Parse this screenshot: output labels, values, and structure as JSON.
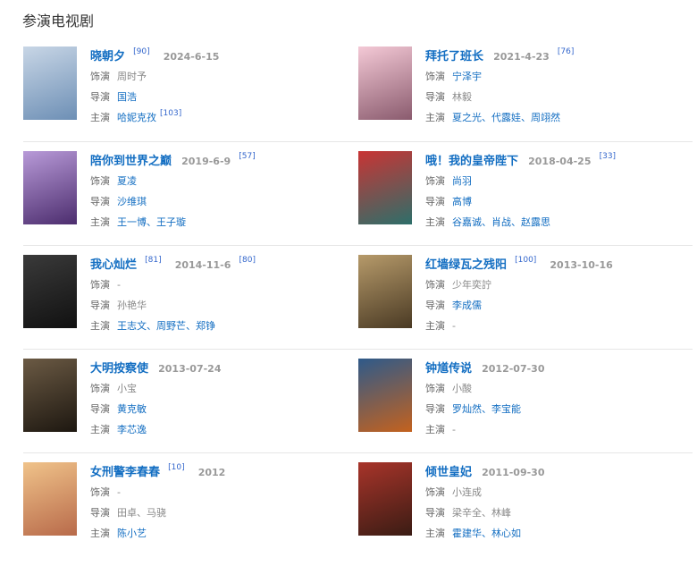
{
  "section_title": "参演电视剧",
  "labels": {
    "role": "饰演",
    "director": "导演",
    "cast": "主演"
  },
  "items": [
    {
      "title": "晓朝夕",
      "ref1": "[90]",
      "date": "2024-6-15",
      "ref2": "",
      "role": "周时予",
      "role_link": false,
      "director": "国浩",
      "director_link": true,
      "cast": "哈妮克孜",
      "cast_link": true,
      "cast_ref": "[103]",
      "poster": [
        "#c8d6e6",
        "#6d8fb5"
      ]
    },
    {
      "title": "拜托了班长",
      "ref1": "",
      "date": "2021-4-23",
      "ref2": "[76]",
      "role": "宁泽宇",
      "role_link": true,
      "director": "林毅",
      "director_link": false,
      "cast": "夏之光、代露娃、周翊然",
      "cast_link": true,
      "cast_ref": "",
      "poster": [
        "#f4c9d6",
        "#8a5b6e"
      ]
    },
    {
      "title": "陪你到世界之巅",
      "ref1": "",
      "date": "2019-6-9",
      "ref2": "[57]",
      "role": "夏凌",
      "role_link": true,
      "director": "沙维琪",
      "director_link": true,
      "cast": "王一博、王子璇",
      "cast_link": true,
      "cast_ref": "",
      "poster": [
        "#b89ad8",
        "#4c2d6e"
      ]
    },
    {
      "title": "哦！我的皇帝陛下",
      "ref1": "",
      "date": "2018-04-25",
      "ref2": "[33]",
      "role": "尚羽",
      "role_link": true,
      "director": "高博",
      "director_link": true,
      "cast": "谷嘉诚、肖战、赵露思",
      "cast_link": true,
      "cast_ref": "",
      "poster": [
        "#c93434",
        "#2d6f6a"
      ]
    },
    {
      "title": "我心灿烂",
      "ref1": "[81]",
      "date": "2014-11-6",
      "ref2": "[80]",
      "role": "-",
      "role_link": false,
      "director": "孙艳华",
      "director_link": false,
      "cast": "王志文、周野芒、郑铮",
      "cast_link": true,
      "cast_ref": "",
      "poster": [
        "#3a3a3a",
        "#111111"
      ]
    },
    {
      "title": "红墙绿瓦之残阳",
      "ref1": "[100]",
      "date": "2013-10-16",
      "ref2": "",
      "role": "少年奕詝",
      "role_link": false,
      "director": "李成儒",
      "director_link": true,
      "cast": "-",
      "cast_link": false,
      "cast_ref": "",
      "poster": [
        "#b69a6a",
        "#4a3a24"
      ]
    },
    {
      "title": "大明按察使",
      "ref1": "",
      "date": "2013-07-24",
      "ref2": "",
      "role": "小宝",
      "role_link": false,
      "director": "黄克敏",
      "director_link": true,
      "cast": "李芯逸",
      "cast_link": true,
      "cast_ref": "",
      "poster": [
        "#6b5a44",
        "#1d1710"
      ]
    },
    {
      "title": "钟馗传说",
      "ref1": "",
      "date": "2012-07-30",
      "ref2": "",
      "role": "小酸",
      "role_link": false,
      "director": "罗灿然、李宝能",
      "director_link": true,
      "cast": "-",
      "cast_link": false,
      "cast_ref": "",
      "poster": [
        "#2e5a8a",
        "#c4621e"
      ]
    },
    {
      "title": "女刑警李春春",
      "ref1": "[10]",
      "date": "2012",
      "ref2": "",
      "role": "-",
      "role_link": false,
      "director": "田卓、马骁",
      "director_link": false,
      "cast": "陈小艺",
      "cast_link": true,
      "cast_ref": "",
      "poster": [
        "#f0c38a",
        "#b86a4a"
      ]
    },
    {
      "title": "倾世皇妃",
      "ref1": "",
      "date": "2011-09-30",
      "ref2": "",
      "role": "小连成",
      "role_link": false,
      "director": "梁辛全、林峰",
      "director_link": false,
      "cast": "霍建华、林心如",
      "cast_link": true,
      "cast_ref": "",
      "poster": [
        "#a8342a",
        "#3a1c14"
      ]
    }
  ]
}
